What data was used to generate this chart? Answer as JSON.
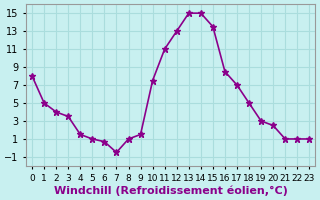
{
  "x": [
    0,
    1,
    2,
    3,
    4,
    5,
    6,
    7,
    8,
    9,
    10,
    11,
    12,
    13,
    14,
    15,
    16,
    17,
    18,
    19,
    20,
    21,
    22,
    23
  ],
  "y": [
    8,
    5,
    4,
    3.5,
    1.5,
    1,
    0.7,
    -0.5,
    1.0,
    1.5,
    7.5,
    11,
    13,
    15,
    15,
    13.5,
    8.5,
    7,
    5,
    3,
    2.5,
    1,
    1,
    1
  ],
  "line_color": "#8B008B",
  "marker": "*",
  "marker_size": 5,
  "bg_color": "#c8f0f0",
  "grid_color": "#aadddd",
  "xlabel": "Windchill (Refroidissement éolien,°C)",
  "xlabel_fontsize": 8,
  "yticks": [
    -1,
    1,
    3,
    5,
    7,
    9,
    11,
    13,
    15
  ],
  "xtick_labels": [
    "0",
    "1",
    "2",
    "3",
    "4",
    "5",
    "6",
    "7",
    "8",
    "9",
    "10",
    "11",
    "12",
    "13",
    "14",
    "15",
    "16",
    "17",
    "18",
    "19",
    "20",
    "21",
    "22",
    "23"
  ],
  "ylim": [
    -2,
    16
  ],
  "xlim": [
    -0.5,
    23.5
  ],
  "tick_fontsize": 7,
  "line_width": 1.2
}
